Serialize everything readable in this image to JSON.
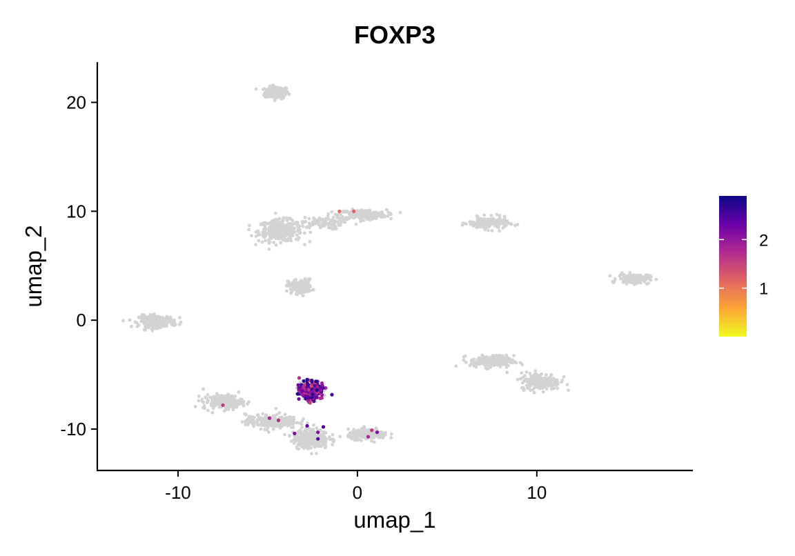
{
  "chart_data": {
    "type": "scatter",
    "title": "FOXP3",
    "xlabel": "umap_1",
    "ylabel": "umap_2",
    "xlim": [
      -14.5,
      18.7
    ],
    "ylim": [
      -13.8,
      23.7
    ],
    "x_ticks": [
      -10,
      0,
      10
    ],
    "y_ticks": [
      -10,
      0,
      10,
      20
    ],
    "grid": false,
    "background_point_color": "#d3d3d3",
    "colorscale": {
      "name": "plasma (reversed)",
      "min": 0,
      "max": 2.9,
      "ticks": [
        1,
        2
      ],
      "stops": [
        "#f0f921",
        "#fca636",
        "#e16462",
        "#b12a90",
        "#6a00a8",
        "#0d0887"
      ]
    },
    "legend_position": "right",
    "background_clusters": [
      {
        "cx": -4.5,
        "cy": 20.9,
        "sx": 0.6,
        "sy": 0.5,
        "n": 180
      },
      {
        "cx": -4.3,
        "cy": 8.2,
        "sx": 1.1,
        "sy": 0.9,
        "n": 320
      },
      {
        "cx": 0.3,
        "cy": 9.7,
        "sx": 1.2,
        "sy": 0.4,
        "n": 240
      },
      {
        "cx": -2.0,
        "cy": 8.9,
        "sx": 1.0,
        "sy": 0.5,
        "n": 80
      },
      {
        "cx": -3.2,
        "cy": 3.1,
        "sx": 0.6,
        "sy": 0.6,
        "n": 150
      },
      {
        "cx": -11.2,
        "cy": -0.1,
        "sx": 0.9,
        "sy": 0.5,
        "n": 220
      },
      {
        "cx": 7.3,
        "cy": 8.9,
        "sx": 1.0,
        "sy": 0.5,
        "n": 180
      },
      {
        "cx": 15.4,
        "cy": 3.8,
        "sx": 0.8,
        "sy": 0.4,
        "n": 140
      },
      {
        "cx": 7.5,
        "cy": -3.8,
        "sx": 1.1,
        "sy": 0.5,
        "n": 200
      },
      {
        "cx": 10.2,
        "cy": -5.6,
        "sx": 1.0,
        "sy": 0.7,
        "n": 220
      },
      {
        "cx": -7.5,
        "cy": -7.5,
        "sx": 1.0,
        "sy": 0.6,
        "n": 200
      },
      {
        "cx": -4.8,
        "cy": -9.3,
        "sx": 1.3,
        "sy": 0.6,
        "n": 260
      },
      {
        "cx": -2.6,
        "cy": -10.9,
        "sx": 0.9,
        "sy": 0.8,
        "n": 280
      },
      {
        "cx": 0.6,
        "cy": -10.5,
        "sx": 1.0,
        "sy": 0.4,
        "n": 200
      },
      {
        "cx": -2.7,
        "cy": -6.6,
        "sx": 0.7,
        "sy": 0.8,
        "n": 60
      }
    ],
    "expressing_cluster": {
      "cx": -2.6,
      "cy": -6.5,
      "sx": 0.55,
      "sy": 0.75,
      "n": 320
    },
    "expressing_points": [
      {
        "x": -1.0,
        "y": 10.0,
        "v": 1.1
      },
      {
        "x": -0.2,
        "y": 10.0,
        "v": 1.2
      },
      {
        "x": -7.5,
        "y": -7.8,
        "v": 1.6
      },
      {
        "x": -4.9,
        "y": -9.0,
        "v": 1.8
      },
      {
        "x": -4.4,
        "y": -9.2,
        "v": 1.7
      },
      {
        "x": -3.5,
        "y": -10.4,
        "v": 2.2
      },
      {
        "x": -2.8,
        "y": -9.7,
        "v": 2.3
      },
      {
        "x": -2.2,
        "y": -10.3,
        "v": 2.1
      },
      {
        "x": -2.2,
        "y": -10.9,
        "v": 2.4
      },
      {
        "x": -1.9,
        "y": -9.8,
        "v": 2.5
      },
      {
        "x": 0.6,
        "y": -10.7,
        "v": 1.8
      },
      {
        "x": 0.8,
        "y": -10.1,
        "v": 1.6
      },
      {
        "x": 1.1,
        "y": -10.3,
        "v": 2.2
      }
    ]
  }
}
